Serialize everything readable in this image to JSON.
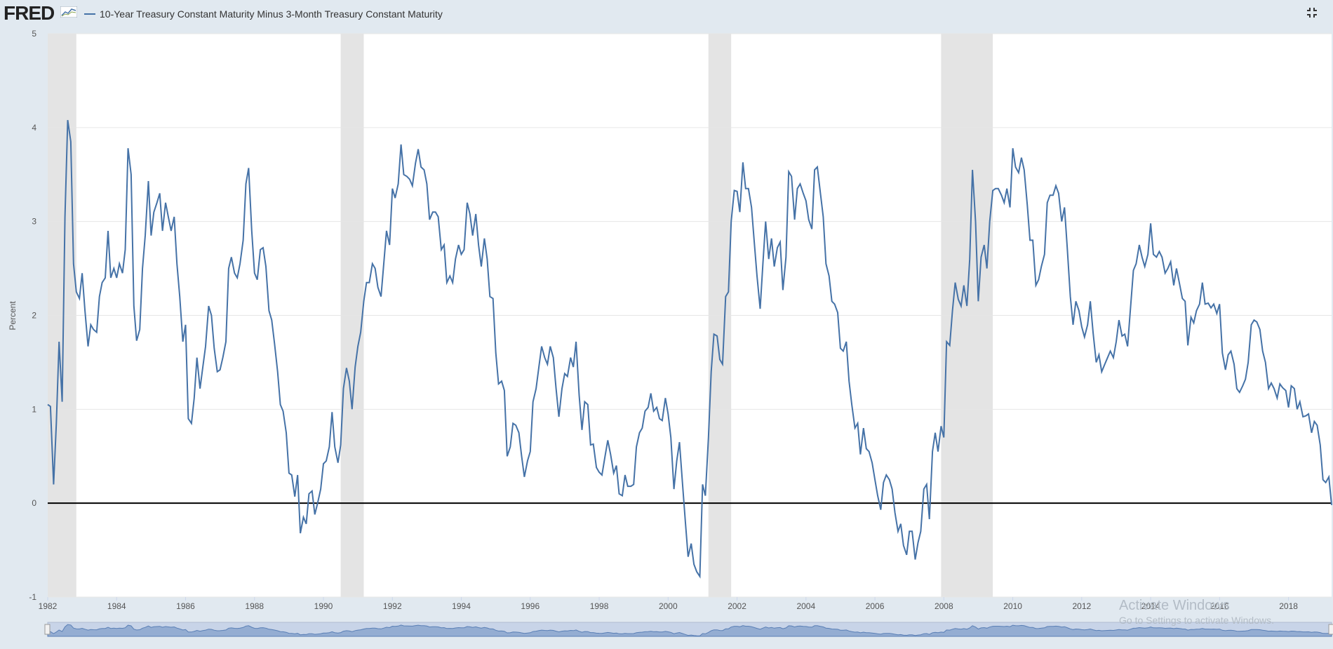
{
  "header": {
    "logo_text": "FRED",
    "series_title": "10-Year Treasury Constant Maturity Minus 3-Month Treasury Constant Maturity",
    "line_color": "#4572a7",
    "recession_color": "#e4e4e4"
  },
  "watermark": {
    "line1": "Activate Windows",
    "line2": "Go to Settings to activate Windows."
  },
  "chart_data": {
    "type": "line",
    "title": "10-Year Treasury Constant Maturity Minus 3-Month Treasury Constant Maturity",
    "xlabel": "",
    "ylabel": "Percent",
    "xlim": [
      1982.0,
      2019.25
    ],
    "ylim": [
      -1,
      5
    ],
    "yticks": [
      -1,
      0,
      1,
      2,
      3,
      4,
      5
    ],
    "xticks": [
      "1982",
      "1984",
      "1986",
      "1988",
      "1990",
      "1992",
      "1994",
      "1996",
      "1998",
      "2000",
      "2002",
      "2004",
      "2006",
      "2008",
      "2010",
      "2012",
      "2014",
      "2016",
      "2018"
    ],
    "grid": "horizontal",
    "legend": "top-left",
    "recessions": [
      [
        1982.0,
        1982.83
      ],
      [
        1990.5,
        1991.17
      ],
      [
        2001.17,
        2001.83
      ],
      [
        2007.92,
        2009.42
      ]
    ],
    "series": [
      {
        "name": "10-Year Treasury Constant Maturity Minus 3-Month Treasury Constant Maturity",
        "x": [
          1982.0,
          1982.08,
          1982.17,
          1982.25,
          1982.33,
          1982.42,
          1982.5,
          1982.58,
          1982.67,
          1982.75,
          1982.83,
          1982.92,
          1983.0,
          1983.08,
          1983.17,
          1983.25,
          1983.33,
          1983.42,
          1983.5,
          1983.58,
          1983.67,
          1983.75,
          1983.83,
          1983.92,
          1984.0,
          1984.08,
          1984.17,
          1984.25,
          1984.33,
          1984.42,
          1984.5,
          1984.58,
          1984.67,
          1984.75,
          1984.83,
          1984.92,
          1985.0,
          1985.08,
          1985.17,
          1985.25,
          1985.33,
          1985.42,
          1985.5,
          1985.58,
          1985.67,
          1985.75,
          1985.83,
          1985.92,
          1986.0,
          1986.08,
          1986.17,
          1986.25,
          1986.33,
          1986.42,
          1986.5,
          1986.58,
          1986.67,
          1986.75,
          1986.83,
          1986.92,
          1987.0,
          1987.08,
          1987.17,
          1987.25,
          1987.33,
          1987.42,
          1987.5,
          1987.58,
          1987.67,
          1987.75,
          1987.83,
          1987.92,
          1988.0,
          1988.08,
          1988.17,
          1988.25,
          1988.33,
          1988.42,
          1988.5,
          1988.58,
          1988.67,
          1988.75,
          1988.83,
          1988.92,
          1989.0,
          1989.08,
          1989.17,
          1989.25,
          1989.33,
          1989.42,
          1989.5,
          1989.58,
          1989.67,
          1989.75,
          1989.83,
          1989.92,
          1990.0,
          1990.08,
          1990.17,
          1990.25,
          1990.33,
          1990.42,
          1990.5,
          1990.58,
          1990.67,
          1990.75,
          1990.83,
          1990.92,
          1991.0,
          1991.08,
          1991.17,
          1991.25,
          1991.33,
          1991.42,
          1991.5,
          1991.58,
          1991.67,
          1991.75,
          1991.83,
          1991.92,
          1992.0,
          1992.08,
          1992.17,
          1992.25,
          1992.33,
          1992.42,
          1992.5,
          1992.58,
          1992.67,
          1992.75,
          1992.83,
          1992.92,
          1993.0,
          1993.08,
          1993.17,
          1993.25,
          1993.33,
          1993.42,
          1993.5,
          1993.58,
          1993.67,
          1993.75,
          1993.83,
          1993.92,
          1994.0,
          1994.08,
          1994.17,
          1994.25,
          1994.33,
          1994.42,
          1994.5,
          1994.58,
          1994.67,
          1994.75,
          1994.83,
          1994.92,
          1995.0,
          1995.08,
          1995.17,
          1995.25,
          1995.33,
          1995.42,
          1995.5,
          1995.58,
          1995.67,
          1995.75,
          1995.83,
          1995.92,
          1996.0,
          1996.08,
          1996.17,
          1996.25,
          1996.33,
          1996.42,
          1996.5,
          1996.58,
          1996.67,
          1996.75,
          1996.83,
          1996.92,
          1997.0,
          1997.08,
          1997.17,
          1997.25,
          1997.33,
          1997.42,
          1997.5,
          1997.58,
          1997.67,
          1997.75,
          1997.83,
          1997.92,
          1998.0,
          1998.08,
          1998.17,
          1998.25,
          1998.33,
          1998.42,
          1998.5,
          1998.58,
          1998.67,
          1998.75,
          1998.83,
          1998.92,
          1999.0,
          1999.08,
          1999.17,
          1999.25,
          1999.33,
          1999.42,
          1999.5,
          1999.58,
          1999.67,
          1999.75,
          1999.83,
          1999.92,
          2000.0,
          2000.08,
          2000.17,
          2000.25,
          2000.33,
          2000.42,
          2000.5,
          2000.58,
          2000.67,
          2000.75,
          2000.83,
          2000.92,
          2001.0,
          2001.08,
          2001.17,
          2001.25,
          2001.33,
          2001.42,
          2001.5,
          2001.58,
          2001.67,
          2001.75,
          2001.83,
          2001.92,
          2002.0,
          2002.08,
          2002.17,
          2002.25,
          2002.33,
          2002.42,
          2002.5,
          2002.58,
          2002.67,
          2002.75,
          2002.83,
          2002.92,
          2003.0,
          2003.08,
          2003.17,
          2003.25,
          2003.33,
          2003.42,
          2003.5,
          2003.58,
          2003.67,
          2003.75,
          2003.83,
          2003.92,
          2004.0,
          2004.08,
          2004.17,
          2004.25,
          2004.33,
          2004.42,
          2004.5,
          2004.58,
          2004.67,
          2004.75,
          2004.83,
          2004.92,
          2005.0,
          2005.08,
          2005.17,
          2005.25,
          2005.33,
          2005.42,
          2005.5,
          2005.58,
          2005.67,
          2005.75,
          2005.83,
          2005.92,
          2006.0,
          2006.08,
          2006.17,
          2006.25,
          2006.33,
          2006.42,
          2006.5,
          2006.58,
          2006.67,
          2006.75,
          2006.83,
          2006.92,
          2007.0,
          2007.08,
          2007.17,
          2007.25,
          2007.33,
          2007.42,
          2007.5,
          2007.58,
          2007.67,
          2007.75,
          2007.83,
          2007.92,
          2008.0,
          2008.08,
          2008.17,
          2008.25,
          2008.33,
          2008.42,
          2008.5,
          2008.58,
          2008.67,
          2008.75,
          2008.83,
          2008.92,
          2009.0,
          2009.08,
          2009.17,
          2009.25,
          2009.33,
          2009.42,
          2009.5,
          2009.58,
          2009.67,
          2009.75,
          2009.83,
          2009.92,
          2010.0,
          2010.08,
          2010.17,
          2010.25,
          2010.33,
          2010.42,
          2010.5,
          2010.58,
          2010.67,
          2010.75,
          2010.83,
          2010.92,
          2011.0,
          2011.08,
          2011.17,
          2011.25,
          2011.33,
          2011.42,
          2011.5,
          2011.58,
          2011.67,
          2011.75,
          2011.83,
          2011.92,
          2012.0,
          2012.08,
          2012.17,
          2012.25,
          2012.33,
          2012.42,
          2012.5,
          2012.58,
          2012.67,
          2012.75,
          2012.83,
          2012.92,
          2013.0,
          2013.08,
          2013.17,
          2013.25,
          2013.33,
          2013.42,
          2013.5,
          2013.58,
          2013.67,
          2013.75,
          2013.83,
          2013.92,
          2014.0,
          2014.08,
          2014.17,
          2014.25,
          2014.33,
          2014.42,
          2014.5,
          2014.58,
          2014.67,
          2014.75,
          2014.83,
          2014.92,
          2015.0,
          2015.08,
          2015.17,
          2015.25,
          2015.33,
          2015.42,
          2015.5,
          2015.58,
          2015.67,
          2015.75,
          2015.83,
          2015.92,
          2016.0,
          2016.08,
          2016.17,
          2016.25,
          2016.33,
          2016.42,
          2016.5,
          2016.58,
          2016.67,
          2016.75,
          2016.83,
          2016.92,
          2017.0,
          2017.08,
          2017.17,
          2017.25,
          2017.33,
          2017.42,
          2017.5,
          2017.58,
          2017.67,
          2017.75,
          2017.83,
          2017.92,
          2018.0,
          2018.08,
          2018.17,
          2018.25,
          2018.33,
          2018.42,
          2018.5,
          2018.58,
          2018.67,
          2018.75,
          2018.83,
          2018.92,
          2019.0,
          2019.08,
          2019.17,
          2019.25
        ],
        "values": [
          1.05,
          1.03,
          0.2,
          0.85,
          1.72,
          1.08,
          3.05,
          4.08,
          3.85,
          2.55,
          2.25,
          2.18,
          2.45,
          2.05,
          1.67,
          1.9,
          1.85,
          1.82,
          2.2,
          2.35,
          2.4,
          2.9,
          2.4,
          2.5,
          2.4,
          2.55,
          2.45,
          2.7,
          3.78,
          3.5,
          2.1,
          1.73,
          1.85,
          2.5,
          2.85,
          3.43,
          2.85,
          3.1,
          3.2,
          3.3,
          2.9,
          3.2,
          3.05,
          2.9,
          3.05,
          2.55,
          2.2,
          1.72,
          1.9,
          0.9,
          0.85,
          1.12,
          1.55,
          1.22,
          1.45,
          1.67,
          2.1,
          2.0,
          1.65,
          1.4,
          1.42,
          1.55,
          1.72,
          2.5,
          2.62,
          2.45,
          2.4,
          2.55,
          2.8,
          3.4,
          3.57,
          2.9,
          2.45,
          2.38,
          2.7,
          2.72,
          2.52,
          2.05,
          1.95,
          1.7,
          1.4,
          1.05,
          0.98,
          0.75,
          0.32,
          0.3,
          0.07,
          0.3,
          -0.32,
          -0.15,
          -0.22,
          0.1,
          0.13,
          -0.12,
          0.0,
          0.15,
          0.42,
          0.45,
          0.6,
          0.97,
          0.6,
          0.43,
          0.62,
          1.22,
          1.44,
          1.3,
          1.0,
          1.45,
          1.67,
          1.82,
          2.15,
          2.35,
          2.35,
          2.55,
          2.5,
          2.3,
          2.2,
          2.55,
          2.9,
          2.75,
          3.35,
          3.25,
          3.4,
          3.82,
          3.5,
          3.48,
          3.45,
          3.38,
          3.62,
          3.77,
          3.58,
          3.55,
          3.4,
          3.02,
          3.1,
          3.1,
          3.05,
          2.7,
          2.75,
          2.35,
          2.42,
          2.35,
          2.6,
          2.75,
          2.65,
          2.7,
          3.2,
          3.08,
          2.85,
          3.08,
          2.75,
          2.52,
          2.82,
          2.6,
          2.2,
          2.18,
          1.6,
          1.27,
          1.3,
          1.2,
          0.5,
          0.6,
          0.85,
          0.83,
          0.75,
          0.5,
          0.28,
          0.45,
          0.55,
          1.08,
          1.22,
          1.45,
          1.67,
          1.55,
          1.48,
          1.67,
          1.55,
          1.22,
          0.92,
          1.22,
          1.38,
          1.35,
          1.55,
          1.45,
          1.72,
          1.15,
          0.78,
          1.08,
          1.05,
          0.62,
          0.63,
          0.38,
          0.33,
          0.3,
          0.5,
          0.67,
          0.52,
          0.32,
          0.4,
          0.1,
          0.08,
          0.3,
          0.18,
          0.18,
          0.2,
          0.6,
          0.75,
          0.8,
          0.98,
          1.02,
          1.17,
          0.98,
          1.02,
          0.9,
          0.88,
          1.12,
          0.95,
          0.7,
          0.15,
          0.45,
          0.65,
          0.2,
          -0.2,
          -0.57,
          -0.43,
          -0.65,
          -0.73,
          -0.78,
          0.2,
          0.08,
          0.7,
          1.4,
          1.8,
          1.78,
          1.53,
          1.48,
          2.2,
          2.25,
          3.0,
          3.33,
          3.32,
          3.1,
          3.63,
          3.35,
          3.35,
          3.15,
          2.78,
          2.42,
          2.07,
          2.55,
          3.0,
          2.6,
          2.82,
          2.52,
          2.72,
          2.78,
          2.27,
          2.62,
          3.53,
          3.48,
          3.02,
          3.35,
          3.4,
          3.3,
          3.22,
          3.02,
          2.92,
          3.55,
          3.58,
          3.3,
          3.05,
          2.55,
          2.42,
          2.15,
          2.12,
          2.03,
          1.65,
          1.62,
          1.72,
          1.3,
          1.05,
          0.8,
          0.85,
          0.52,
          0.8,
          0.58,
          0.55,
          0.43,
          0.25,
          0.08,
          -0.07,
          0.22,
          0.3,
          0.25,
          0.15,
          -0.1,
          -0.3,
          -0.22,
          -0.45,
          -0.55,
          -0.3,
          -0.3,
          -0.6,
          -0.42,
          -0.3,
          0.15,
          0.2,
          -0.17,
          0.55,
          0.75,
          0.55,
          0.82,
          0.7,
          1.72,
          1.68,
          2.05,
          2.35,
          2.17,
          2.1,
          2.32,
          2.1,
          2.6,
          3.55,
          3.0,
          2.15,
          2.62,
          2.75,
          2.5,
          3.0,
          3.33,
          3.35,
          3.35,
          3.28,
          3.2,
          3.35,
          3.15,
          3.78,
          3.58,
          3.52,
          3.68,
          3.55,
          3.18,
          2.8,
          2.8,
          2.32,
          2.38,
          2.52,
          2.65,
          3.2,
          3.28,
          3.28,
          3.38,
          3.3,
          3.0,
          3.15,
          2.72,
          2.2,
          1.9,
          2.15,
          2.05,
          1.88,
          1.77,
          1.9,
          2.15,
          1.82,
          1.5,
          1.58,
          1.4,
          1.48,
          1.55,
          1.62,
          1.55,
          1.72,
          1.95,
          1.78,
          1.8,
          1.67,
          2.1,
          2.48,
          2.55,
          2.75,
          2.62,
          2.52,
          2.65,
          2.98,
          2.65,
          2.62,
          2.68,
          2.62,
          2.45,
          2.5,
          2.57,
          2.32,
          2.5,
          2.35,
          2.18,
          2.15,
          1.68,
          1.98,
          1.92,
          2.05,
          2.12,
          2.35,
          2.12,
          2.13,
          2.08,
          2.12,
          2.02,
          2.12,
          1.6,
          1.42,
          1.58,
          1.62,
          1.48,
          1.22,
          1.18,
          1.25,
          1.32,
          1.5,
          1.9,
          1.95,
          1.93,
          1.85,
          1.62,
          1.5,
          1.22,
          1.28,
          1.22,
          1.12,
          1.27,
          1.23,
          1.2,
          1.02,
          1.25,
          1.22,
          1.0,
          1.08,
          0.92,
          0.93,
          0.95,
          0.75,
          0.87,
          0.83,
          0.62,
          0.25,
          0.22,
          0.28,
          -0.02
        ]
      }
    ]
  }
}
